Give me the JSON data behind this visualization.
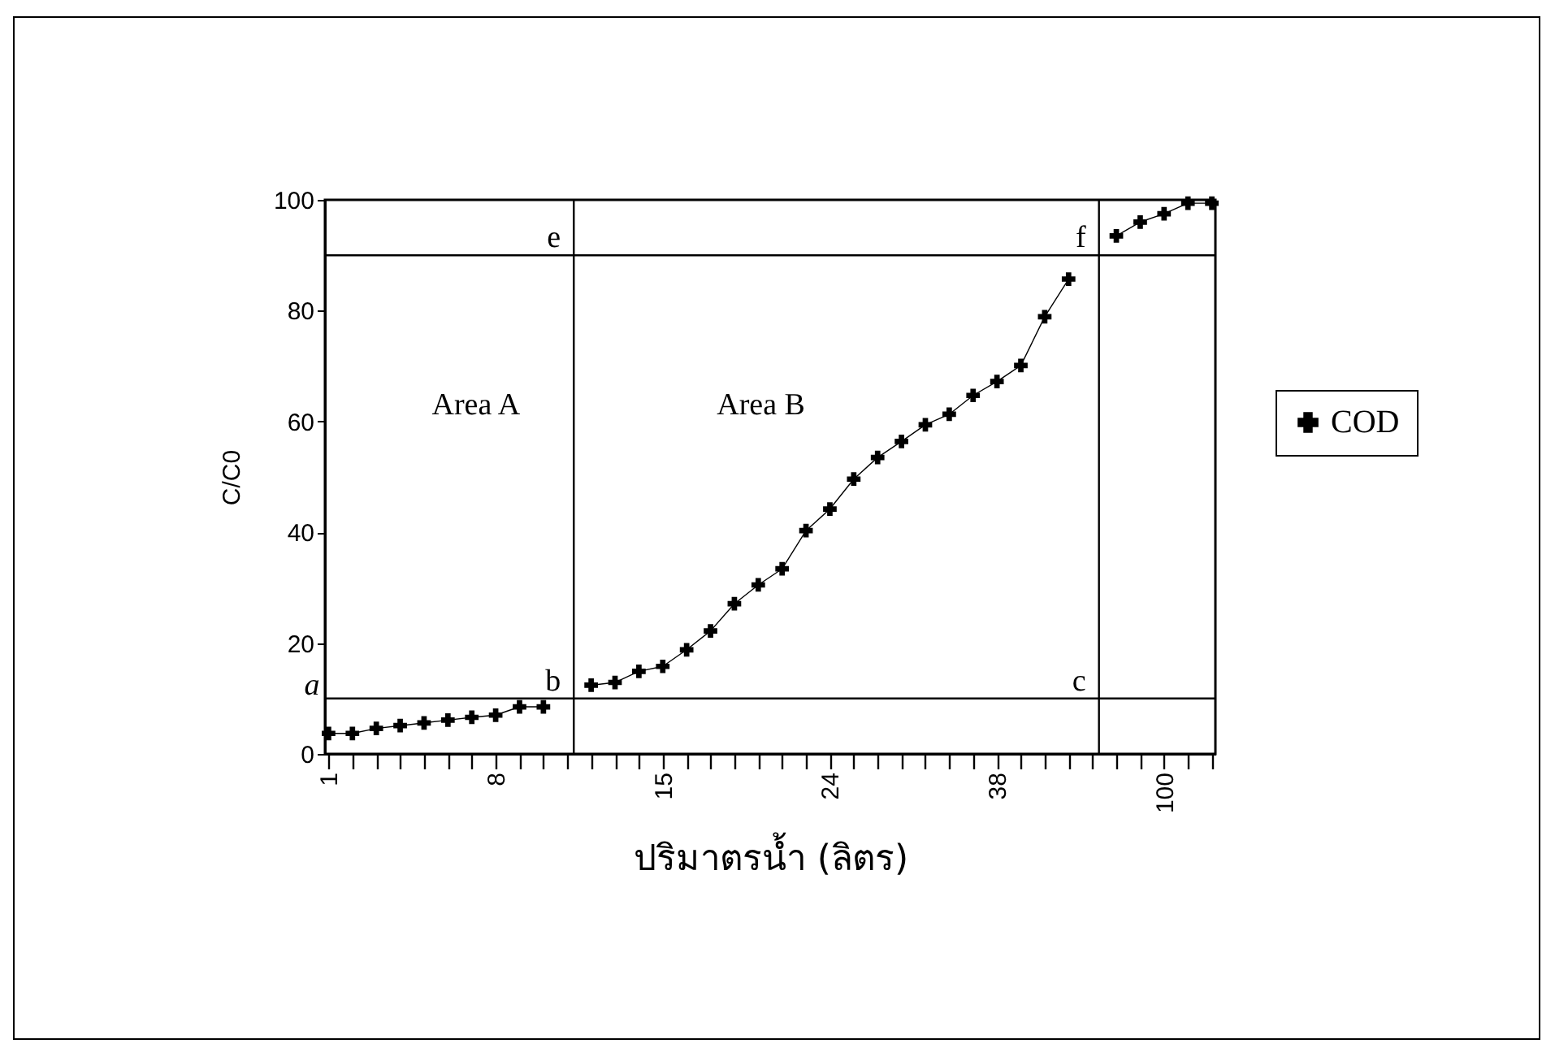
{
  "chart_data": {
    "type": "line",
    "xlabel": "ปริมาตรน้ำ (ลิตร)",
    "ylabel": "C/C0",
    "categories": [
      "1",
      null,
      null,
      null,
      null,
      null,
      null,
      "8",
      null,
      null,
      null,
      null,
      null,
      null,
      "15",
      null,
      null,
      null,
      null,
      null,
      null,
      "24",
      null,
      null,
      null,
      null,
      null,
      null,
      "38",
      null,
      null,
      null,
      null,
      null,
      null,
      "100",
      null,
      null
    ],
    "series": [
      {
        "name": "COD",
        "color": "#000000",
        "values": [
          3.7,
          3.7,
          4.6,
          5.1,
          5.6,
          6.1,
          6.6,
          7.0,
          8.5,
          8.5,
          null,
          12.4,
          12.9,
          14.9,
          15.8,
          18.8,
          22.2,
          27.1,
          30.5,
          33.4,
          40.3,
          44.2,
          49.6,
          53.5,
          56.4,
          59.4,
          61.3,
          64.7,
          67.2,
          70.1,
          78.9,
          85.7,
          null,
          93.5,
          96.0,
          97.5,
          99.4,
          99.4
        ]
      }
    ],
    "ylim": [
      0,
      100
    ],
    "yticks": [
      0,
      20,
      40,
      60,
      80,
      100
    ],
    "grid": false,
    "legend": "right",
    "marker": "cross",
    "line_style": "solid",
    "ref_lines": [
      {
        "axis": "y",
        "value": 10,
        "label": null
      },
      {
        "axis": "y",
        "value": 90,
        "label": null
      }
    ],
    "annotations": [
      "Area A",
      "Area B",
      "a",
      {
        "text": "b",
        "y": 10
      },
      {
        "text": "c",
        "y": 10
      },
      {
        "text": "e",
        "y": 90
      },
      {
        "text": "f",
        "y": 90
      }
    ]
  }
}
